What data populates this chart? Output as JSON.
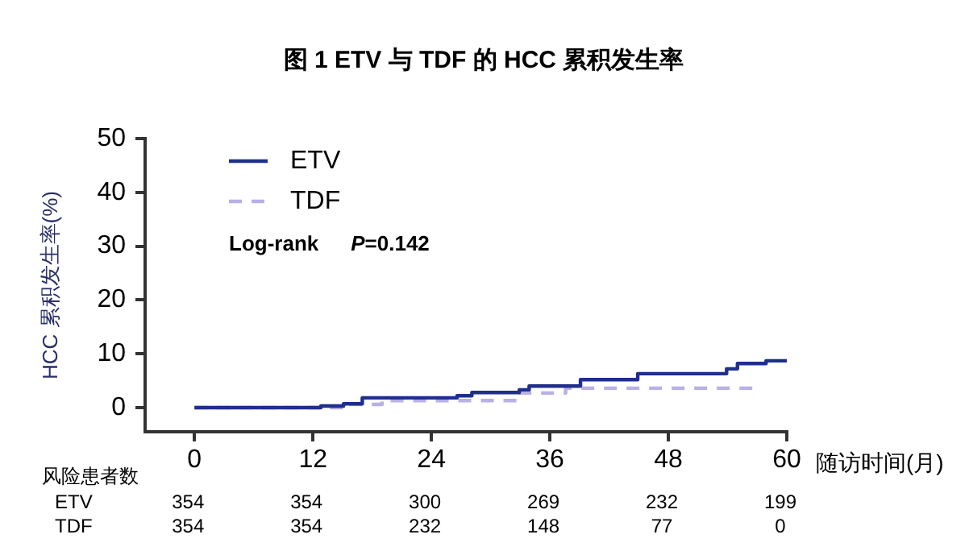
{
  "chart_data": {
    "type": "step",
    "title": "图 1 ETV 与 TDF 的 HCC 累积发生率",
    "xlabel": "随访时间(月)",
    "ylabel": "HCC 累积发生率(%)",
    "xlim": [
      -5,
      60
    ],
    "xticks": [
      0,
      12,
      24,
      36,
      48,
      60
    ],
    "ylim": [
      -4.5,
      50
    ],
    "yticks": [
      0,
      10,
      20,
      30,
      40,
      50
    ],
    "grid": false,
    "legend": "top left",
    "marker": "none",
    "series": [
      {
        "name": "ETV",
        "color": "#1f2f8a",
        "line_style": "solid",
        "x": [
          0,
          12.8,
          15.1,
          17.0,
          26.6,
          28.1,
          32.9,
          33.9,
          39.1,
          44.9,
          53.9,
          55.0,
          57.9,
          60
        ],
        "values": [
          0,
          0.3,
          0.7,
          1.8,
          2.2,
          2.8,
          3.3,
          4.0,
          5.2,
          6.3,
          7.2,
          8.2,
          8.7,
          8.7
        ]
      },
      {
        "name": "TDF",
        "color": "#b8b0e6",
        "line_style": "dashed",
        "x": [
          0,
          15.1,
          19.0,
          33.0,
          37.6,
          56.7
        ],
        "values": [
          0,
          0.6,
          1.3,
          2.7,
          3.6,
          3.6
        ]
      }
    ],
    "annotations": [
      "Log-rank P=0.142",
      "风险患者数",
      "ETV 354 354 300 269 232 199",
      "TDF 354 354 232 148 77 0"
    ]
  }
}
